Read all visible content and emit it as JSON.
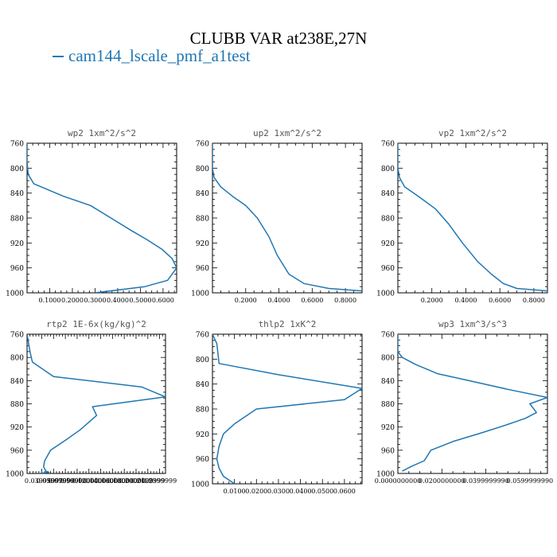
{
  "figure": {
    "title": "CLUBB VAR at238E,27N",
    "legend_label": "cam144_lscale_pmf_a1test",
    "series_color": "#1f77b4"
  },
  "chart_data": [
    {
      "type": "line",
      "title": "wp2  1xm^2/s^2",
      "xlim": [
        0.0,
        0.66
      ],
      "ylim": [
        760,
        1000
      ],
      "y_inverted": true,
      "xticks": [
        0.1,
        0.2,
        0.3,
        0.4,
        0.5,
        0.6
      ],
      "xtick_labels": [
        "0.1000",
        "0.2000",
        "0.3000",
        "0.4000",
        "0.5000",
        "0.6000"
      ],
      "yticks": [
        760,
        800,
        840,
        880,
        920,
        960,
        1000
      ],
      "ytick_labels": [
        "760",
        "800",
        "840",
        "880",
        "920",
        "960",
        "1000"
      ],
      "series": [
        {
          "x": [
            0.0,
            0.0,
            0.005,
            0.03,
            0.16,
            0.28,
            0.37,
            0.46,
            0.53,
            0.595,
            0.64,
            0.66,
            0.62,
            0.52,
            0.3
          ],
          "y": [
            760,
            790,
            810,
            825,
            845,
            860,
            880,
            900,
            915,
            930,
            945,
            960,
            980,
            990,
            1000
          ]
        }
      ]
    },
    {
      "type": "line",
      "title": "up2  1xm^2/s^2",
      "xlim": [
        0.0,
        0.9
      ],
      "ylim": [
        760,
        1000
      ],
      "y_inverted": true,
      "xticks": [
        0.2,
        0.4,
        0.6,
        0.8
      ],
      "xtick_labels": [
        "0.2000",
        "0.4000",
        "0.6000",
        "0.8000"
      ],
      "yticks": [
        760,
        800,
        840,
        880,
        920,
        960,
        1000
      ],
      "ytick_labels": [
        "760",
        "800",
        "840",
        "880",
        "920",
        "960",
        "1000"
      ],
      "series": [
        {
          "x": [
            0.0,
            0.0,
            0.01,
            0.05,
            0.12,
            0.2,
            0.27,
            0.34,
            0.39,
            0.46,
            0.55,
            0.7,
            0.9
          ],
          "y": [
            760,
            800,
            815,
            830,
            845,
            860,
            880,
            910,
            940,
            970,
            985,
            993,
            997
          ]
        }
      ]
    },
    {
      "type": "line",
      "title": "vp2  1xm^2/s^2",
      "xlim": [
        0.0,
        0.88
      ],
      "ylim": [
        760,
        1000
      ],
      "y_inverted": true,
      "xticks": [
        0.2,
        0.4,
        0.6,
        0.8
      ],
      "xtick_labels": [
        "0.2000",
        "0.4000",
        "0.6000",
        "0.8000"
      ],
      "yticks": [
        760,
        800,
        840,
        880,
        920,
        960,
        1000
      ],
      "ytick_labels": [
        "760",
        "800",
        "840",
        "880",
        "920",
        "960",
        "1000"
      ],
      "series": [
        {
          "x": [
            0.0,
            0.0,
            0.01,
            0.04,
            0.12,
            0.22,
            0.3,
            0.38,
            0.47,
            0.55,
            0.62,
            0.7,
            0.88
          ],
          "y": [
            760,
            800,
            815,
            830,
            845,
            865,
            890,
            920,
            950,
            970,
            985,
            993,
            997
          ]
        }
      ]
    },
    {
      "type": "line",
      "title": "rtp2  1E-6x(kg/kg)^2",
      "xlim": [
        0.015,
        0.25
      ],
      "ylim": [
        760,
        1000
      ],
      "y_inverted": true,
      "xticks": [
        0.04,
        0.06,
        0.08,
        0.1,
        0.12,
        0.14,
        0.16,
        0.18,
        0.2,
        0.22,
        0.24
      ],
      "xtick_labels": [
        "0.0399999",
        "0.0599999",
        "0.0799999",
        "0.1000000",
        "0.1200000",
        "0.1400000",
        "0.1600000",
        "0.1800000",
        "0.2000000",
        "0.2199999",
        "0.2399999"
      ],
      "yticks": [
        760,
        800,
        840,
        880,
        920,
        960,
        1000
      ],
      "ytick_labels": [
        "760",
        "800",
        "840",
        "880",
        "920",
        "960",
        "1000"
      ],
      "series": [
        {
          "x": [
            0.015,
            0.02,
            0.024,
            0.06,
            0.21,
            0.25,
            0.126,
            0.133,
            0.105,
            0.08,
            0.055,
            0.045,
            0.043,
            0.047,
            0.052,
            0.035
          ],
          "y": [
            760,
            790,
            808,
            833,
            851,
            868,
            885,
            900,
            925,
            943,
            960,
            978,
            988,
            996,
            998,
            1000
          ]
        }
      ]
    },
    {
      "type": "line",
      "title": "thlp2  1xK^2",
      "xlim": [
        0.0,
        0.068
      ],
      "ylim": [
        760,
        1000
      ],
      "y_inverted": true,
      "xticks": [
        0.01,
        0.02,
        0.03,
        0.04,
        0.05,
        0.06
      ],
      "xtick_labels": [
        "0.0100",
        "0.0200",
        "0.0300",
        "0.0400",
        "0.0500",
        "0.0600"
      ],
      "yticks": [
        760,
        800,
        840,
        880,
        920,
        960,
        1000
      ],
      "ytick_labels": [
        "760",
        "800",
        "840",
        "880",
        "920",
        "960",
        "1000"
      ],
      "series": [
        {
          "x": [
            0.0,
            0.002,
            0.003,
            0.03,
            0.068,
            0.06,
            0.02,
            0.01,
            0.005,
            0.003,
            0.002,
            0.003,
            0.005,
            0.008,
            0.01
          ],
          "y": [
            760,
            775,
            807,
            825,
            847,
            865,
            880,
            904,
            920,
            940,
            960,
            975,
            988,
            995,
            1000
          ]
        }
      ]
    },
    {
      "type": "line",
      "title": "wp3  1xm^3/s^3",
      "xlim": [
        0.0,
        0.068
      ],
      "ylim": [
        760,
        1000
      ],
      "y_inverted": true,
      "xticks": [
        0.0,
        0.02,
        0.04,
        0.06
      ],
      "xtick_labels": [
        "0.0000000000",
        "0.0200000000",
        "0.0399999990",
        "0.0599999990"
      ],
      "yticks": [
        760,
        800,
        840,
        880,
        920,
        960,
        1000
      ],
      "ytick_labels": [
        "760",
        "800",
        "840",
        "880",
        "920",
        "960",
        "1000"
      ],
      "series": [
        {
          "x": [
            0.0,
            0.0,
            0.002,
            0.008,
            0.018,
            0.03,
            0.05,
            0.068,
            0.06,
            0.063,
            0.058,
            0.048,
            0.038,
            0.025,
            0.015,
            0.012,
            0.006,
            0.002
          ],
          "y": [
            760,
            790,
            800,
            812,
            828,
            838,
            855,
            869,
            880,
            895,
            905,
            918,
            930,
            945,
            960,
            978,
            988,
            996
          ]
        }
      ]
    }
  ]
}
